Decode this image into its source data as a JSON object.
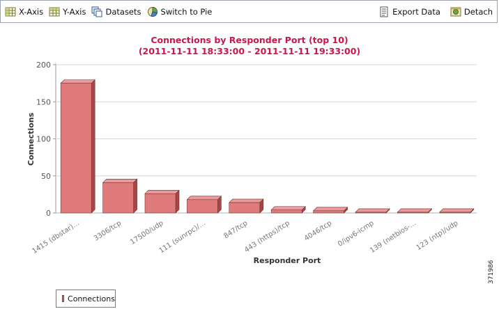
{
  "toolbar": {
    "x_axis_label": "X-Axis",
    "y_axis_label": "Y-Axis",
    "datasets_label": "Datasets",
    "switch_label": "Switch to Pie",
    "export_label": "Export Data",
    "detach_label": "Detach"
  },
  "chart_data": {
    "type": "bar",
    "title": "Connections by Responder Port (top 10)",
    "subtitle": "(2011-11-11 18:33:00 - 2011-11-11 19:33:00)",
    "xlabel": "Responder Port",
    "ylabel": "Connections",
    "ylim": [
      0,
      200
    ],
    "yticks": [
      0,
      50,
      100,
      150,
      200
    ],
    "grid": true,
    "bar_3d": true,
    "categories": [
      "1415 (dbstar)...",
      "3306/tcp",
      "17500/udp",
      "111 (sunrpc)/...",
      "847/tcp",
      "443 (https)/tcp",
      "4046/tcp",
      "0/ipv6-icmp",
      "139 (netbios-...",
      "123 (ntp)/udp"
    ],
    "series": [
      {
        "name": "Connections",
        "values": [
          175,
          41,
          26,
          18,
          14,
          4,
          3,
          1,
          1,
          1
        ]
      }
    ],
    "legend_position": "bottom-left",
    "colors": {
      "bar_front": "#e07b7b",
      "bar_top": "#ea9a9a",
      "bar_side": "#a64747",
      "title": "#c8174a"
    }
  },
  "figure_id": "371986"
}
